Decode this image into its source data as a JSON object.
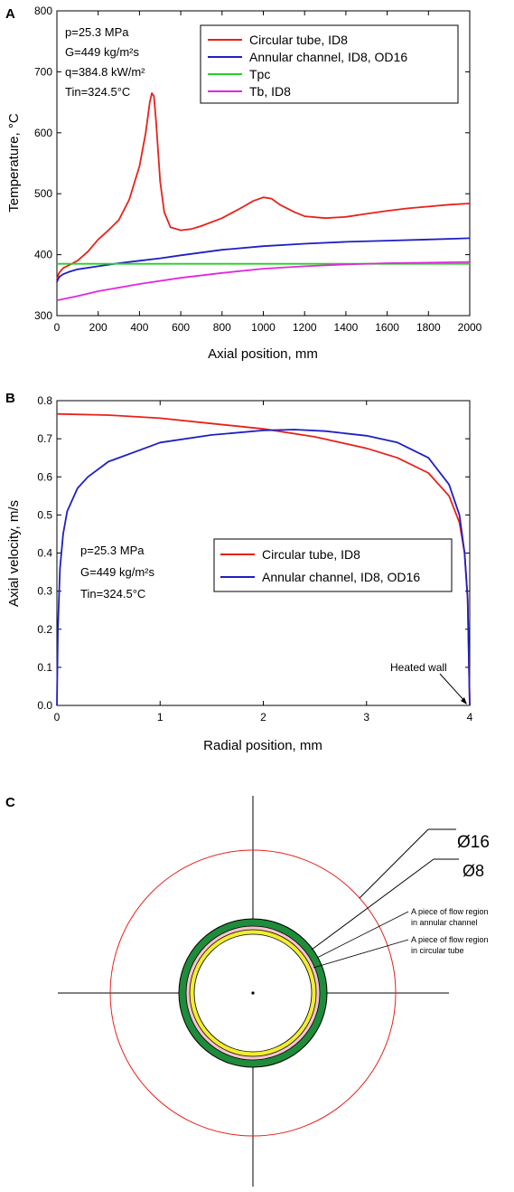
{
  "chart_data": [
    {
      "panel": "A",
      "type": "line",
      "xlabel": "Axial position, mm",
      "ylabel": "Temperature, °C",
      "xlim": [
        0,
        2000
      ],
      "ylim": [
        300,
        800
      ],
      "xticks": [
        0,
        200,
        400,
        600,
        800,
        1000,
        1200,
        1400,
        1600,
        1800,
        2000
      ],
      "yticks": [
        300,
        400,
        500,
        600,
        700,
        800
      ],
      "conditions": [
        "p=25.3 MPa",
        "G=449 kg/m²s",
        "q=384.8 kW/m²",
        "Tin=324.5°C"
      ],
      "legend_position": "top-right",
      "series": [
        {
          "name": "Circular tube, ID8",
          "color": "#e8211b",
          "x": [
            0,
            10,
            30,
            60,
            100,
            150,
            200,
            250,
            300,
            350,
            400,
            430,
            450,
            460,
            470,
            480,
            490,
            500,
            520,
            550,
            600,
            650,
            700,
            800,
            900,
            950,
            1000,
            1040,
            1080,
            1150,
            1200,
            1300,
            1400,
            1500,
            1600,
            1700,
            1800,
            1900,
            2000
          ],
          "y": [
            360,
            370,
            378,
            383,
            390,
            405,
            425,
            440,
            457,
            490,
            545,
            600,
            650,
            665,
            660,
            620,
            570,
            520,
            470,
            445,
            440,
            442,
            447,
            460,
            478,
            488,
            494,
            492,
            482,
            470,
            463,
            460,
            462,
            467,
            472,
            476,
            479,
            482,
            484
          ]
        },
        {
          "name": "Annular channel, ID8, OD16",
          "color": "#1f1fc4",
          "x": [
            0,
            10,
            30,
            60,
            100,
            200,
            300,
            400,
            500,
            600,
            800,
            1000,
            1200,
            1400,
            1600,
            1800,
            2000
          ],
          "y": [
            355,
            363,
            368,
            372,
            376,
            381,
            386,
            390,
            394,
            399,
            408,
            414,
            418,
            421,
            423,
            425,
            427
          ]
        },
        {
          "name": "Tpc",
          "color": "#27d027",
          "x": [
            0,
            2000
          ],
          "y": [
            385,
            385
          ]
        },
        {
          "name": "Tb, ID8",
          "color": "#e028e0",
          "x": [
            0,
            100,
            200,
            400,
            600,
            800,
            1000,
            1200,
            1400,
            1600,
            1800,
            2000
          ],
          "y": [
            325,
            332,
            340,
            352,
            362,
            370,
            377,
            381,
            384,
            386,
            387,
            388
          ]
        }
      ]
    },
    {
      "panel": "B",
      "type": "line",
      "xlabel": "Radial position, mm",
      "ylabel": "Axial velocity, m/s",
      "xlim": [
        0,
        4
      ],
      "ylim": [
        0.0,
        0.8
      ],
      "xticks": [
        0,
        1,
        2,
        3,
        4
      ],
      "yticks": [
        0.0,
        0.1,
        0.2,
        0.3,
        0.4,
        0.5,
        0.6,
        0.7,
        0.8
      ],
      "conditions": [
        "p=25.3 MPa",
        "G=449 kg/m²s",
        "Tin=324.5°C"
      ],
      "annotation": "Heated wall",
      "legend_position": "center-right",
      "series": [
        {
          "name": "Circular tube, ID8",
          "color": "#e8211b",
          "x": [
            0,
            0.5,
            1.0,
            1.5,
            2.0,
            2.5,
            3.0,
            3.3,
            3.6,
            3.8,
            3.9,
            3.95,
            3.98,
            4.0
          ],
          "y": [
            0.765,
            0.762,
            0.754,
            0.74,
            0.726,
            0.705,
            0.675,
            0.65,
            0.61,
            0.55,
            0.48,
            0.4,
            0.28,
            0.0
          ]
        },
        {
          "name": "Annular channel, ID8, OD16",
          "color": "#1f1fc4",
          "x": [
            0,
            0.01,
            0.03,
            0.06,
            0.1,
            0.2,
            0.3,
            0.5,
            0.8,
            1.0,
            1.5,
            2.0,
            2.3,
            2.6,
            3.0,
            3.3,
            3.6,
            3.8,
            3.9,
            3.95,
            3.98,
            4.0
          ],
          "y": [
            0.0,
            0.2,
            0.36,
            0.45,
            0.51,
            0.57,
            0.6,
            0.64,
            0.67,
            0.69,
            0.71,
            0.722,
            0.724,
            0.72,
            0.708,
            0.69,
            0.65,
            0.58,
            0.5,
            0.4,
            0.28,
            0.0
          ]
        }
      ]
    }
  ],
  "diagram": {
    "panel": "C",
    "outer_diameter_label": "Ø16",
    "inner_diameter_label": "Ø8",
    "annular_note": [
      "A piece of flow region",
      "in annular channel"
    ],
    "tube_note": [
      "A piece of flow region",
      "in circular tube"
    ],
    "colors": {
      "outer_circle": "#e8211b",
      "wall": "#1e8c3a",
      "annular_piece": "#f7c2d0",
      "tube_piece": "#f2ee2e"
    }
  }
}
